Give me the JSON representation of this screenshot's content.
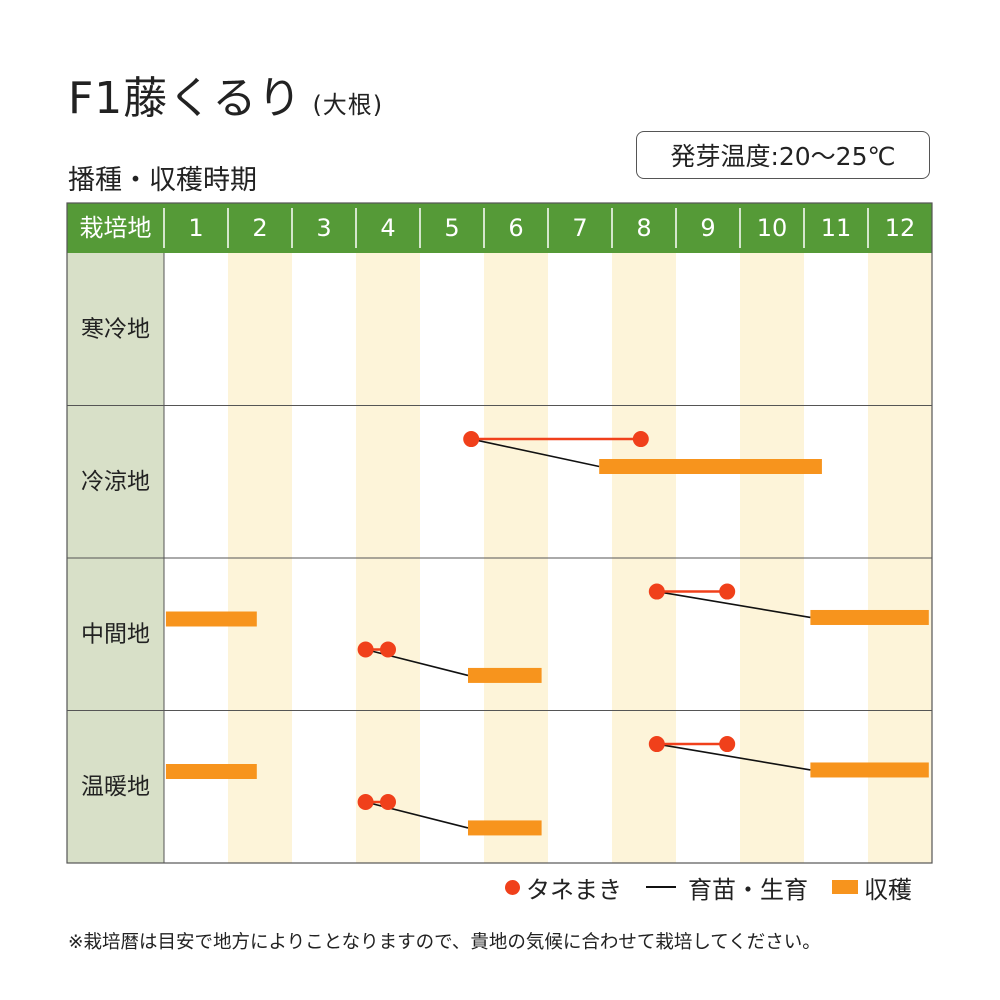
{
  "title": "F1藤くるり",
  "title_sub": "(大根)",
  "subtitle": "播種・収穫時期",
  "temp_label": "発芽温度:20〜25℃",
  "legend": {
    "sow": "タネまき",
    "grow": "育苗・生育",
    "harvest": "収穫"
  },
  "note": "※栽培暦は目安で地方によりことなりますので、貴地の気候に合わせて栽培してください。",
  "colors": {
    "header": "#559a37",
    "header_text": "#ffffff",
    "label_col": "#d8e0c8",
    "stripe": "#fdf4d9",
    "sow": "#f0401b",
    "sow_link": "#f0401b",
    "grow": "#111111",
    "harvest": "#f7941d",
    "border": "#555555"
  },
  "chart_data": {
    "type": "gantt",
    "header_label": "栽培地",
    "months": [
      "1",
      "2",
      "3",
      "4",
      "5",
      "6",
      "7",
      "8",
      "9",
      "10",
      "11",
      "12"
    ],
    "regions": [
      {
        "name": "寒冷地",
        "schedules": []
      },
      {
        "name": "冷涼地",
        "schedules": [
          {
            "sow": [
              5.8,
              8.45
            ],
            "harvest": [
              7.8,
              11.28
            ]
          }
        ]
      },
      {
        "name": "中間地",
        "schedules": [
          {
            "sow": [
              8.7,
              9.8
            ],
            "harvest": [
              11.1,
              12.95
            ]
          },
          {
            "harvest": [
              1.03,
              2.45
            ]
          },
          {
            "sow": [
              4.15,
              4.5
            ],
            "harvest": [
              5.75,
              6.9
            ]
          }
        ]
      },
      {
        "name": "温暖地",
        "schedules": [
          {
            "sow": [
              8.7,
              9.8
            ],
            "harvest": [
              11.1,
              12.95
            ]
          },
          {
            "harvest": [
              1.03,
              2.45
            ]
          },
          {
            "sow": [
              4.15,
              4.5
            ],
            "harvest": [
              5.75,
              6.9
            ]
          }
        ]
      }
    ]
  }
}
